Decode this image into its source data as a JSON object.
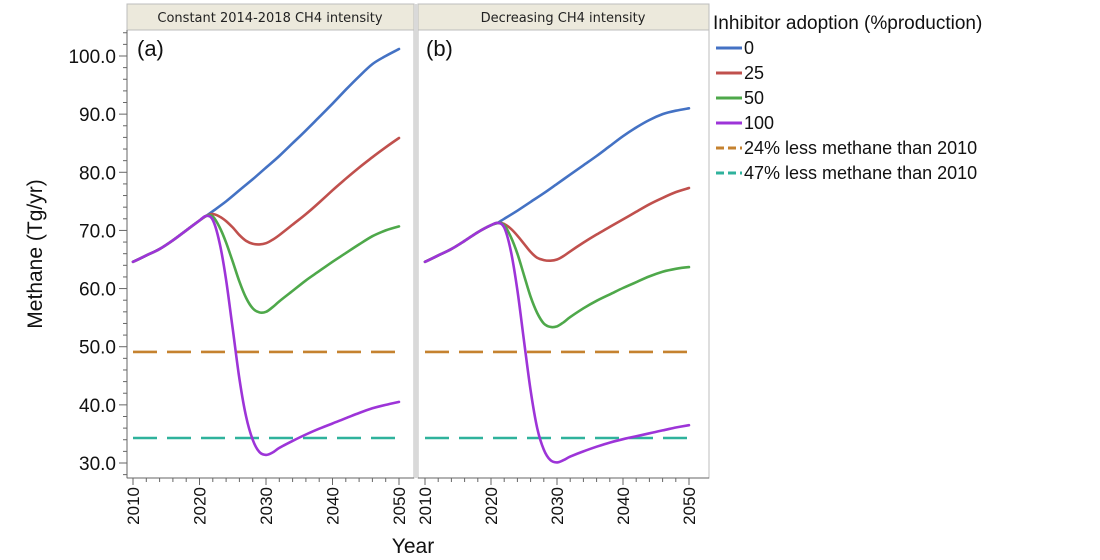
{
  "chart_data": [
    {
      "type": "line",
      "panel_label": "(a)",
      "title": "Constant 2014-2018 CH4 intensity",
      "xlabel": "Year",
      "ylabel": "Methane (Tg/yr)",
      "xlim": [
        2009,
        2052
      ],
      "ylim": [
        28,
        104
      ],
      "xticks": [
        2010,
        2020,
        2030,
        2040,
        2050
      ],
      "yticks": [
        30.0,
        40.0,
        50.0,
        60.0,
        70.0,
        80.0,
        90.0,
        100.0
      ],
      "series": [
        {
          "name": "0",
          "x": [
            2010,
            2012,
            2014,
            2016,
            2018,
            2020,
            2021,
            2022,
            2024,
            2026,
            2028,
            2030,
            2032,
            2034,
            2036,
            2038,
            2040,
            2042,
            2044,
            2046,
            2048,
            2050
          ],
          "y": [
            64.6,
            65.7,
            66.8,
            68.3,
            70.0,
            71.7,
            72.5,
            73.3,
            75.0,
            76.9,
            78.8,
            80.8,
            82.8,
            85.0,
            87.2,
            89.5,
            91.8,
            94.2,
            96.5,
            98.6,
            100.0,
            101.2
          ]
        },
        {
          "name": "25",
          "x": [
            2010,
            2012,
            2014,
            2016,
            2018,
            2020,
            2021,
            2022,
            2023,
            2024,
            2025,
            2026,
            2027,
            2028,
            2029,
            2030,
            2031,
            2032,
            2034,
            2036,
            2038,
            2040,
            2042,
            2044,
            2046,
            2048,
            2050
          ],
          "y": [
            64.6,
            65.7,
            66.8,
            68.3,
            70.0,
            71.7,
            72.5,
            72.8,
            72.4,
            71.6,
            70.5,
            69.2,
            68.2,
            67.7,
            67.6,
            67.8,
            68.4,
            69.2,
            71.0,
            72.8,
            74.8,
            76.9,
            78.9,
            80.8,
            82.6,
            84.3,
            85.9
          ]
        },
        {
          "name": "50",
          "x": [
            2010,
            2012,
            2014,
            2016,
            2018,
            2020,
            2021,
            2022,
            2023,
            2024,
            2025,
            2026,
            2027,
            2028,
            2029,
            2030,
            2031,
            2032,
            2034,
            2036,
            2038,
            2040,
            2042,
            2044,
            2046,
            2048,
            2050
          ],
          "y": [
            64.6,
            65.7,
            66.8,
            68.3,
            70.0,
            71.7,
            72.5,
            72.4,
            70.6,
            67.9,
            64.6,
            61.2,
            58.4,
            56.6,
            55.9,
            56.0,
            56.8,
            57.8,
            59.6,
            61.4,
            63.0,
            64.6,
            66.1,
            67.6,
            69.0,
            70.0,
            70.7
          ]
        },
        {
          "name": "100",
          "x": [
            2010,
            2012,
            2014,
            2016,
            2018,
            2020,
            2021,
            2022,
            2023,
            2024,
            2025,
            2026,
            2027,
            2028,
            2029,
            2030,
            2031,
            2032,
            2034,
            2036,
            2038,
            2040,
            2042,
            2044,
            2046,
            2048,
            2050
          ],
          "y": [
            64.6,
            65.7,
            66.8,
            68.3,
            70.0,
            71.7,
            72.5,
            71.8,
            68.0,
            61.5,
            53.0,
            44.5,
            38.0,
            34.0,
            31.9,
            31.4,
            31.8,
            32.6,
            33.8,
            34.9,
            35.9,
            36.8,
            37.7,
            38.6,
            39.4,
            40.0,
            40.5
          ]
        },
        {
          "name": "24% less methane than 2010",
          "x": [
            2010,
            2050
          ],
          "y": [
            49.1,
            49.1
          ],
          "dashed": true
        },
        {
          "name": "47% less methane than 2010",
          "x": [
            2010,
            2050
          ],
          "y": [
            34.3,
            34.3
          ],
          "dashed": true
        }
      ]
    },
    {
      "type": "line",
      "panel_label": "(b)",
      "title": "Decreasing CH4 intensity",
      "xlabel": "Year",
      "ylabel": "Methane (Tg/yr)",
      "xlim": [
        2009,
        2052
      ],
      "ylim": [
        28,
        104
      ],
      "xticks": [
        2010,
        2020,
        2030,
        2040,
        2050
      ],
      "yticks": [
        30.0,
        40.0,
        50.0,
        60.0,
        70.0,
        80.0,
        90.0,
        100.0
      ],
      "series": [
        {
          "name": "0",
          "x": [
            2010,
            2012,
            2014,
            2016,
            2018,
            2020,
            2021,
            2022,
            2024,
            2026,
            2028,
            2030,
            2032,
            2034,
            2036,
            2038,
            2040,
            2042,
            2044,
            2046,
            2048,
            2050
          ],
          "y": [
            64.6,
            65.7,
            66.8,
            68.2,
            69.7,
            70.9,
            71.3,
            72.0,
            73.4,
            74.9,
            76.4,
            78.0,
            79.6,
            81.2,
            82.8,
            84.5,
            86.2,
            87.7,
            89.0,
            90.0,
            90.6,
            91.0
          ]
        },
        {
          "name": "25",
          "x": [
            2010,
            2012,
            2014,
            2016,
            2018,
            2020,
            2021,
            2022,
            2023,
            2024,
            2025,
            2026,
            2027,
            2028,
            2029,
            2030,
            2031,
            2032,
            2034,
            2036,
            2038,
            2040,
            2042,
            2044,
            2046,
            2048,
            2050
          ],
          "y": [
            64.6,
            65.7,
            66.8,
            68.2,
            69.7,
            70.9,
            71.3,
            71.1,
            70.3,
            69.1,
            67.7,
            66.3,
            65.3,
            64.9,
            64.8,
            65.0,
            65.6,
            66.4,
            67.9,
            69.3,
            70.6,
            71.9,
            73.2,
            74.5,
            75.6,
            76.6,
            77.3
          ]
        },
        {
          "name": "50",
          "x": [
            2010,
            2012,
            2014,
            2016,
            2018,
            2020,
            2021,
            2022,
            2023,
            2024,
            2025,
            2026,
            2027,
            2028,
            2029,
            2030,
            2031,
            2032,
            2034,
            2036,
            2038,
            2040,
            2042,
            2044,
            2046,
            2048,
            2050
          ],
          "y": [
            64.6,
            65.7,
            66.8,
            68.2,
            69.7,
            70.9,
            71.3,
            70.9,
            68.9,
            66.0,
            62.3,
            58.6,
            55.8,
            54.0,
            53.4,
            53.5,
            54.2,
            55.1,
            56.6,
            57.9,
            59.0,
            60.1,
            61.1,
            62.1,
            62.9,
            63.4,
            63.7
          ]
        },
        {
          "name": "100",
          "x": [
            2010,
            2012,
            2014,
            2016,
            2018,
            2020,
            2021,
            2022,
            2023,
            2024,
            2025,
            2026,
            2027,
            2028,
            2029,
            2030,
            2031,
            2032,
            2034,
            2036,
            2038,
            2040,
            2042,
            2044,
            2046,
            2048,
            2050
          ],
          "y": [
            64.6,
            65.7,
            66.8,
            68.2,
            69.7,
            70.9,
            71.3,
            70.5,
            66.5,
            59.7,
            51.0,
            42.5,
            36.0,
            32.3,
            30.5,
            30.1,
            30.5,
            31.1,
            32.0,
            32.8,
            33.5,
            34.1,
            34.6,
            35.1,
            35.6,
            36.1,
            36.5
          ]
        },
        {
          "name": "24% less methane than 2010",
          "x": [
            2010,
            2050
          ],
          "y": [
            49.1,
            49.1
          ],
          "dashed": true
        },
        {
          "name": "47% less methane than 2010",
          "x": [
            2010,
            2050
          ],
          "y": [
            34.3,
            34.3
          ],
          "dashed": true
        }
      ]
    }
  ],
  "legend": {
    "title": "Inhibitor adoption (%production)",
    "items": [
      {
        "label": "0",
        "color": "#4472c4"
      },
      {
        "label": "25",
        "color": "#c0504d"
      },
      {
        "label": "50",
        "color": "#4ea84a"
      },
      {
        "label": "100",
        "color": "#9d34d8"
      },
      {
        "label": "24% less methane than 2010",
        "color": "#c5822f"
      },
      {
        "label": "47% less methane than 2010",
        "color": "#2fb29c"
      }
    ]
  },
  "axis": {
    "ylabel": "Methane (Tg/yr)",
    "xlabel": "Year"
  }
}
